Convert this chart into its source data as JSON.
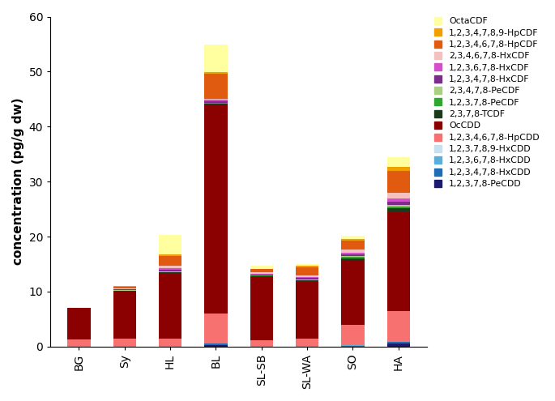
{
  "categories": [
    "BG",
    "Sy",
    "HL",
    "BL",
    "SL-SB",
    "SL-WA",
    "SO",
    "HA"
  ],
  "ylabel": "concentration (pg/g dw)",
  "ylim": [
    0,
    60
  ],
  "yticks": [
    0,
    10,
    20,
    30,
    40,
    50,
    60
  ],
  "series": [
    {
      "label": "1,2,3,7,8-PeCDD",
      "color": "#1a1a6e",
      "values": [
        0.0,
        0.0,
        0.0,
        0.25,
        0.0,
        0.0,
        0.0,
        0.5
      ]
    },
    {
      "label": "1,2,3,4,7,8-HxCDD",
      "color": "#1e6eb5",
      "values": [
        0.0,
        0.0,
        0.0,
        0.25,
        0.0,
        0.0,
        0.1,
        0.3
      ]
    },
    {
      "label": "1,2,3,6,7,8-HxCDD",
      "color": "#5aaedb",
      "values": [
        0.0,
        0.0,
        0.0,
        0.0,
        0.0,
        0.0,
        0.1,
        0.2
      ]
    },
    {
      "label": "1,2,3,7,8,9-HxCDD",
      "color": "#c6e0f0",
      "values": [
        0.0,
        0.0,
        0.0,
        0.0,
        0.0,
        0.0,
        0.0,
        0.0
      ]
    },
    {
      "label": "1,2,3,4,6,7,8-HpCDD",
      "color": "#f87171",
      "values": [
        1.3,
        1.5,
        1.5,
        5.5,
        1.2,
        1.5,
        3.8,
        5.5
      ]
    },
    {
      "label": "OcCDD",
      "color": "#8b0000",
      "values": [
        5.8,
        8.5,
        11.8,
        38.0,
        11.5,
        10.3,
        11.8,
        18.0
      ]
    },
    {
      "label": "2,3,7,8-TCDF",
      "color": "#1a3a1a",
      "values": [
        0.0,
        0.1,
        0.2,
        0.15,
        0.1,
        0.2,
        0.3,
        0.6
      ]
    },
    {
      "label": "1,2,3,7,8-PeCDF",
      "color": "#2ea82e",
      "values": [
        0.0,
        0.1,
        0.1,
        0.1,
        0.1,
        0.1,
        0.2,
        0.4
      ]
    },
    {
      "label": "2,3,4,7,8-PeCDF",
      "color": "#a8d080",
      "values": [
        0.0,
        0.05,
        0.1,
        0.1,
        0.05,
        0.1,
        0.15,
        0.3
      ]
    },
    {
      "label": "1,2,3,4,7,8-HxCDF",
      "color": "#7b2d8b",
      "values": [
        0.0,
        0.15,
        0.3,
        0.3,
        0.15,
        0.25,
        0.35,
        0.6
      ]
    },
    {
      "label": "1,2,3,6,7,8-HxCDF",
      "color": "#d44fcc",
      "values": [
        0.0,
        0.1,
        0.25,
        0.2,
        0.15,
        0.2,
        0.3,
        0.5
      ]
    },
    {
      "label": "2,3,4,6,7,8-HxCDF",
      "color": "#f5c0c0",
      "values": [
        0.0,
        0.1,
        0.4,
        0.2,
        0.3,
        0.3,
        0.5,
        1.0
      ]
    },
    {
      "label": "1,2,3,4,6,7,8-HpCDF",
      "color": "#e05a10",
      "values": [
        0.0,
        0.3,
        1.8,
        4.5,
        0.5,
        1.5,
        1.7,
        4.0
      ]
    },
    {
      "label": "1,2,3,4,7,8,9-HpCDF",
      "color": "#f0a000",
      "values": [
        0.0,
        0.1,
        0.3,
        0.4,
        0.1,
        0.2,
        0.3,
        0.8
      ]
    },
    {
      "label": "OctaCDF",
      "color": "#ffffa0",
      "values": [
        0.0,
        0.0,
        3.5,
        5.0,
        0.5,
        0.4,
        0.6,
        1.8
      ]
    }
  ]
}
